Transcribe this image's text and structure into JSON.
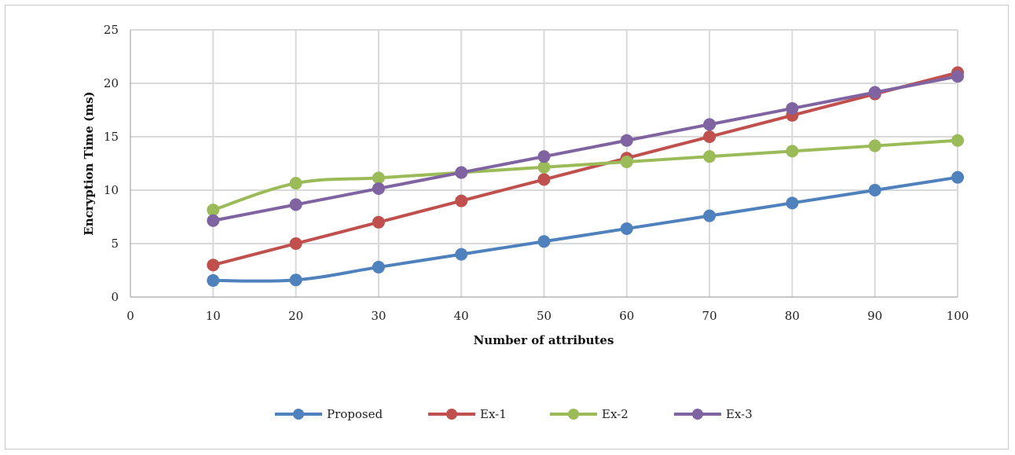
{
  "chart_data": {
    "type": "line",
    "title": "",
    "xlabel": "Number of attributes",
    "ylabel": "Encryption Time (ms)",
    "xlim": [
      0,
      100
    ],
    "ylim": [
      0,
      25
    ],
    "x_ticks": [
      0,
      10,
      20,
      30,
      40,
      50,
      60,
      70,
      80,
      90,
      100
    ],
    "y_ticks": [
      0,
      5,
      10,
      15,
      20,
      25
    ],
    "grid": "vertical-and-horizontal",
    "legend_position": "bottom",
    "x": [
      10,
      20,
      30,
      40,
      50,
      60,
      70,
      80,
      90,
      100
    ],
    "series": [
      {
        "name": "Proposed",
        "color": "#4f81bd",
        "values": [
          1.55,
          1.6,
          2.8,
          4.0,
          5.2,
          6.4,
          7.6,
          8.8,
          10.0,
          11.2
        ]
      },
      {
        "name": "Ex-1",
        "color": "#c0504d",
        "values": [
          3.0,
          5.0,
          7.0,
          9.0,
          11.0,
          13.0,
          15.0,
          17.0,
          19.0,
          21.0
        ]
      },
      {
        "name": "Ex-2",
        "color": "#9bbb59",
        "values": [
          8.15,
          10.65,
          11.15,
          11.65,
          12.15,
          12.65,
          13.15,
          13.65,
          14.15,
          14.65
        ]
      },
      {
        "name": "Ex-3",
        "color": "#8064a2",
        "values": [
          7.15,
          8.65,
          10.15,
          11.65,
          13.15,
          14.65,
          16.15,
          17.65,
          19.15,
          20.65
        ]
      }
    ]
  }
}
